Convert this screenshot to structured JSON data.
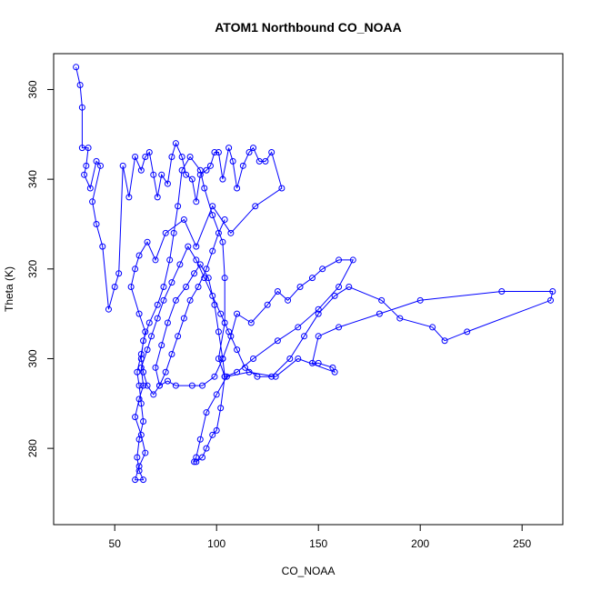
{
  "chart_data": {
    "type": "scatter",
    "title": "ATOM1 Northbound CO_NOAA",
    "xlabel": "CO_NOAA",
    "ylabel": "Theta (K)",
    "xlim": [
      20,
      270
    ],
    "ylim": [
      263,
      368
    ],
    "xticks": [
      50,
      100,
      150,
      200,
      250
    ],
    "yticks": [
      280,
      300,
      320,
      340,
      360
    ],
    "grid": false,
    "legend": "none",
    "connect_points": true,
    "colors": {
      "series": "#0000ff",
      "axis": "#000000",
      "background": "#ffffff"
    },
    "series": [
      {
        "values": [
          [
            31,
            365
          ],
          [
            33,
            361
          ],
          [
            34,
            356
          ],
          [
            34,
            347
          ],
          [
            37,
            347
          ],
          [
            36,
            343
          ],
          [
            35,
            341
          ],
          [
            38,
            338
          ],
          [
            41,
            344
          ],
          [
            43,
            343
          ],
          [
            39,
            335
          ],
          [
            41,
            330
          ],
          [
            44,
            325
          ],
          [
            47,
            311
          ],
          [
            50,
            316
          ],
          [
            52,
            319
          ],
          [
            54,
            343
          ],
          [
            57,
            336
          ],
          [
            60,
            345
          ],
          [
            63,
            342
          ],
          [
            65,
            345
          ],
          [
            67,
            346
          ],
          [
            69,
            341
          ],
          [
            71,
            336
          ],
          [
            73,
            341
          ],
          [
            76,
            339
          ],
          [
            78,
            345
          ],
          [
            80,
            348
          ],
          [
            83,
            345
          ],
          [
            85,
            341
          ],
          [
            88,
            340
          ],
          [
            90,
            335
          ],
          [
            92,
            341
          ],
          [
            95,
            342
          ],
          [
            97,
            343
          ],
          [
            99,
            346
          ],
          [
            101,
            346
          ],
          [
            103,
            340
          ],
          [
            106,
            347
          ],
          [
            108,
            344
          ],
          [
            110,
            338
          ],
          [
            113,
            343
          ],
          [
            116,
            346
          ],
          [
            118,
            347
          ],
          [
            121,
            344
          ],
          [
            124,
            344
          ],
          [
            127,
            346
          ],
          [
            132,
            338
          ],
          [
            119,
            334
          ],
          [
            107,
            328
          ],
          [
            98,
            334
          ],
          [
            90,
            325
          ],
          [
            84,
            331
          ],
          [
            75,
            328
          ],
          [
            70,
            322
          ],
          [
            66,
            326
          ],
          [
            62,
            323
          ],
          [
            60,
            320
          ],
          [
            58,
            316
          ],
          [
            62,
            310
          ],
          [
            65,
            306
          ],
          [
            63,
            301
          ],
          [
            61,
            297
          ],
          [
            62,
            294
          ],
          [
            63,
            290
          ],
          [
            64,
            286
          ],
          [
            62,
            282
          ],
          [
            61,
            278
          ],
          [
            62,
            275
          ],
          [
            64,
            273
          ],
          [
            60,
            273
          ],
          [
            62,
            276
          ],
          [
            65,
            279
          ],
          [
            63,
            283
          ],
          [
            60,
            287
          ],
          [
            62,
            291
          ],
          [
            64,
            294
          ],
          [
            63,
            298
          ],
          [
            66,
            302
          ],
          [
            68,
            305
          ],
          [
            71,
            309
          ],
          [
            74,
            313
          ],
          [
            78,
            317
          ],
          [
            82,
            321
          ],
          [
            86,
            325
          ],
          [
            90,
            322
          ],
          [
            94,
            318
          ],
          [
            98,
            314
          ],
          [
            102,
            310
          ],
          [
            106,
            306
          ],
          [
            110,
            302
          ],
          [
            114,
            298
          ],
          [
            120,
            296
          ],
          [
            127,
            296
          ],
          [
            136,
            300
          ],
          [
            143,
            305
          ],
          [
            150,
            310
          ],
          [
            158,
            314
          ],
          [
            165,
            316
          ],
          [
            181,
            313
          ],
          [
            190,
            309
          ],
          [
            206,
            307
          ],
          [
            212,
            304
          ],
          [
            223,
            306
          ],
          [
            264,
            313
          ],
          [
            265,
            315
          ],
          [
            240,
            315
          ],
          [
            200,
            313
          ],
          [
            180,
            310
          ],
          [
            160,
            307
          ],
          [
            150,
            305
          ],
          [
            147,
            299
          ],
          [
            150,
            299
          ],
          [
            157,
            298
          ],
          [
            158,
            297
          ],
          [
            140,
            300
          ],
          [
            129,
            296
          ],
          [
            116,
            297
          ],
          [
            105,
            296
          ],
          [
            100,
            292
          ],
          [
            95,
            288
          ],
          [
            92,
            282
          ],
          [
            90,
            278
          ],
          [
            89,
            277
          ],
          [
            90,
            277
          ],
          [
            93,
            278
          ],
          [
            95,
            280
          ],
          [
            98,
            283
          ],
          [
            100,
            284
          ],
          [
            102,
            289
          ],
          [
            104,
            296
          ],
          [
            103,
            300
          ],
          [
            101,
            306
          ],
          [
            99,
            312
          ],
          [
            96,
            318
          ],
          [
            92,
            321
          ],
          [
            89,
            319
          ],
          [
            85,
            316
          ],
          [
            80,
            313
          ],
          [
            76,
            308
          ],
          [
            73,
            303
          ],
          [
            70,
            298
          ],
          [
            72,
            294
          ],
          [
            76,
            295
          ],
          [
            80,
            294
          ],
          [
            88,
            294
          ],
          [
            93,
            294
          ],
          [
            99,
            296
          ],
          [
            103,
            300
          ],
          [
            107,
            305
          ],
          [
            110,
            310
          ],
          [
            117,
            308
          ],
          [
            125,
            312
          ],
          [
            130,
            315
          ],
          [
            135,
            313
          ],
          [
            141,
            316
          ],
          [
            147,
            318
          ],
          [
            152,
            320
          ],
          [
            160,
            322
          ],
          [
            167,
            322
          ],
          [
            160,
            316
          ],
          [
            150,
            311
          ],
          [
            140,
            307
          ],
          [
            130,
            304
          ],
          [
            118,
            300
          ],
          [
            110,
            297
          ],
          [
            104,
            296
          ],
          [
            101,
            300
          ],
          [
            104,
            308
          ],
          [
            104,
            318
          ],
          [
            103,
            326
          ],
          [
            98,
            332
          ],
          [
            94,
            338
          ],
          [
            92,
            342
          ],
          [
            87,
            345
          ],
          [
            83,
            342
          ],
          [
            81,
            334
          ],
          [
            79,
            328
          ],
          [
            77,
            322
          ],
          [
            74,
            316
          ],
          [
            71,
            312
          ],
          [
            67,
            308
          ],
          [
            64,
            304
          ],
          [
            63,
            300
          ],
          [
            64,
            297
          ],
          [
            66,
            294
          ],
          [
            69,
            292
          ],
          [
            72,
            294
          ],
          [
            75,
            297
          ],
          [
            78,
            301
          ],
          [
            81,
            305
          ],
          [
            84,
            309
          ],
          [
            87,
            313
          ],
          [
            91,
            316
          ],
          [
            95,
            320
          ],
          [
            98,
            324
          ],
          [
            101,
            328
          ],
          [
            104,
            331
          ]
        ]
      }
    ]
  }
}
